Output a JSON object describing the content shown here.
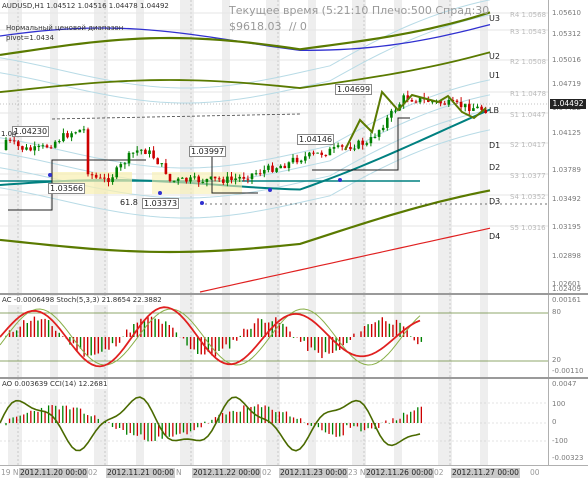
{
  "header": {
    "symbol_line": "AUDUSD,H1  1.04512 1.04516 1.04478 1.04492",
    "indicator_title": "Нормальный ценовой диапазон",
    "pivot_label": "pivot=1.0434",
    "server_time": "Текущее время (5:21:10 Плечо:500 Спрад:30",
    "balance": "$9618.03",
    "counter": "// 0"
  },
  "levels": {
    "U3": "U3",
    "U2": "U2",
    "U1": "U1",
    "LB": "LB",
    "D1": "D1",
    "D2": "D2",
    "D3": "D3",
    "D4": "D4",
    "R4": "R4 1.0568",
    "R3": "R3 1.0543",
    "R2": "R2 1.0508",
    "R1": "R1 1.0478",
    "S1": "S1 1.0447",
    "S2": "S2 1.0417",
    "S3": "S3 1.0377",
    "S4": "S4 1.0352",
    "S5": "S5 1.0316"
  },
  "annotations": {
    "p1": "1.04230",
    "p2": "1.03566",
    "p3": "1.03373",
    "p4": "1.03997",
    "p5": "1.04146",
    "p6": "1.04699",
    "fib": "61.8",
    "left_cut": "1.04",
    "left_cut2": "1.0"
  },
  "price_axis": [
    "1.05610",
    "1.05312",
    "1.05016",
    "1.04719",
    "1.04422",
    "1.04125",
    "1.03789",
    "1.03492",
    "1.03195",
    "1.02898",
    "1.02601",
    "1.02409"
  ],
  "current_price": "1.04492",
  "ac_stoch": {
    "title": "AC -0.0006498  Stoch(5,3,3) 21.8654 22.3882",
    "axis": [
      "0.00161",
      "80",
      "20",
      "-0.00110"
    ]
  },
  "ao_cci": {
    "title": "AO 0.003639  CCI(14)  12.2681",
    "axis": [
      "0.0047",
      "100",
      "0",
      "-100",
      "-0.00323"
    ]
  },
  "timebar": {
    "labels": [
      "19 N",
      "2012.11.20 00:00",
      "02",
      "2012.11.21 00:00",
      "N",
      "2012.11.22 00:00",
      "02",
      "2012.11.23 00:00",
      "23 N",
      "2012.11.26 00:00",
      "02",
      "2012.11.27 00:00",
      "00"
    ]
  },
  "colors": {
    "bull": "#008000",
    "bear": "#cc0000",
    "band_outer": "#5a7a00",
    "band_blue": "#3030d0",
    "teal_ma": "#008080",
    "red_band": "#e02020"
  }
}
